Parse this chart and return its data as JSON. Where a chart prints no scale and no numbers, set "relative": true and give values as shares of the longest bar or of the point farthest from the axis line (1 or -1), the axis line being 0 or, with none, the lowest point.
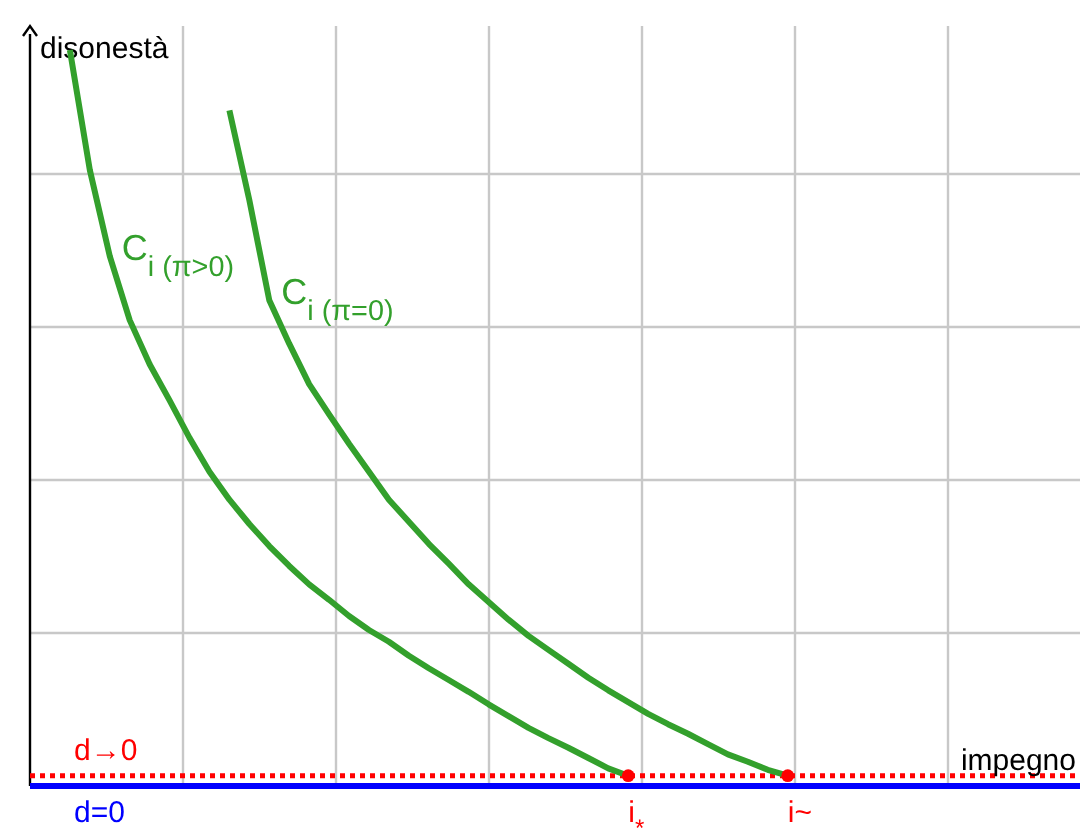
{
  "chart_data": {
    "type": "line",
    "relative": true,
    "xlabel": "impegno",
    "ylabel": "disonestà",
    "grid": true,
    "marker": "none",
    "line_style": "solid",
    "categories": [
      null,
      null,
      null,
      null,
      null,
      null,
      null,
      null,
      null,
      null,
      null,
      null,
      null,
      null,
      null,
      null,
      null,
      null,
      null,
      null,
      null,
      null,
      null,
      null,
      null,
      null,
      null,
      null,
      null,
      null,
      null,
      null,
      null,
      null,
      null,
      null,
      null,
      null,
      null,
      null,
      null,
      null,
      null,
      null,
      null,
      null,
      null,
      null,
      null,
      null,
      null,
      null,
      null
    ],
    "series": [
      {
        "name": "C$_{i (π>0)}$",
        "color": "#33a02c",
        "values": [
          null,
          null,
          1.0,
          0.837,
          0.72,
          0.633,
          0.573,
          0.524,
          0.473,
          0.427,
          0.389,
          0.356,
          0.326,
          0.299,
          0.274,
          0.253,
          0.231,
          0.212,
          0.196,
          0.177,
          0.16,
          0.144,
          0.128,
          0.111,
          0.095,
          0.079,
          0.065,
          0.052,
          0.038,
          0.024,
          0.014,
          null,
          null,
          null,
          null,
          null,
          null,
          null,
          null,
          null,
          null,
          null,
          null,
          null,
          null,
          null,
          null,
          null,
          null,
          null,
          null,
          null,
          null
        ]
      },
      {
        "name": "C$_{i (π=0)}$",
        "color": "#33a02c",
        "values": [
          null,
          null,
          null,
          null,
          null,
          null,
          null,
          null,
          null,
          null,
          0.918,
          0.796,
          0.66,
          0.601,
          0.546,
          0.505,
          0.465,
          0.427,
          0.389,
          0.359,
          0.329,
          0.302,
          0.274,
          0.25,
          0.226,
          0.204,
          0.185,
          0.166,
          0.147,
          0.13,
          0.114,
          0.098,
          0.084,
          0.071,
          0.057,
          0.043,
          0.033,
          0.022,
          0.014,
          null,
          null,
          null,
          null,
          null,
          null,
          null,
          null,
          null,
          null,
          null,
          null,
          null,
          null
        ]
      }
    ],
    "annotations": [
      "i$_{*}$",
      "i~"
    ],
    "ref_lines": [
      {
        "axis": "y",
        "value": 0,
        "label": "d=0",
        "color": "#0000ff",
        "line_style": "solid"
      },
      {
        "axis": "y",
        "value": 0.014,
        "label": "d→0",
        "color": "#ff0000",
        "line_style": "dotted"
      }
    ]
  }
}
